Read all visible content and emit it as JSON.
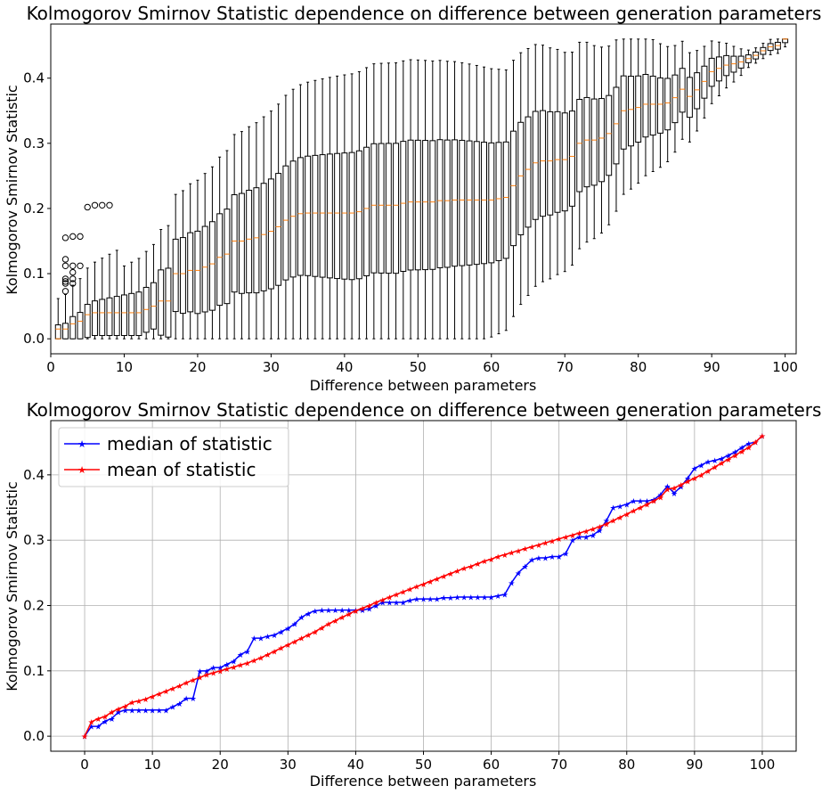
{
  "chart_data": [
    {
      "type": "box",
      "title": "Kolmogorov Smirnov Statistic dependence on difference between generation parameters",
      "xlabel": "Difference between parameters",
      "ylabel": "Kolmogorov Smirnov Statistic",
      "xlim": [
        0,
        101.5
      ],
      "ylim": [
        -0.023,
        0.483
      ],
      "xticks": [
        "0",
        "10",
        "20",
        "30",
        "40",
        "50",
        "60",
        "70",
        "80",
        "90",
        "100"
      ],
      "yticks": [
        "0.0",
        "0.1",
        "0.2",
        "0.3",
        "0.4"
      ],
      "grid": false,
      "box_edge_color": "#000000",
      "median_color": "#ff7f0e",
      "outlier_color": "#000000",
      "summary": "Boxplots of the statistic for each parameter difference 1..100; medians follow the median curve shown below, quartile ranges widen toward the middle and narrow near 100.",
      "outliers": [
        {
          "x": 2,
          "values": [
            0.155,
            0.122,
            0.112,
            0.092,
            0.088,
            0.085,
            0.073
          ]
        },
        {
          "x": 3,
          "values": [
            0.157,
            0.112,
            0.102,
            0.092,
            0.085
          ]
        },
        {
          "x": 4,
          "values": [
            0.157,
            0.112
          ]
        },
        {
          "x": 5,
          "values": [
            0.202
          ]
        },
        {
          "x": 6,
          "values": [
            0.205
          ]
        },
        {
          "x": 7,
          "values": [
            0.205
          ]
        },
        {
          "x": 8,
          "values": [
            0.205
          ]
        }
      ]
    },
    {
      "type": "line",
      "title": "Kolmogorov Smirnov Statistic dependence on difference between generation parameters",
      "xlabel": "Difference between parameters",
      "ylabel": "Kolmogorov Smirnov Statistic",
      "xlim": [
        -5,
        105
      ],
      "ylim": [
        -0.023,
        0.483
      ],
      "xticks": [
        "0",
        "10",
        "20",
        "30",
        "40",
        "50",
        "60",
        "70",
        "80",
        "90",
        "100"
      ],
      "yticks": [
        "0.0",
        "0.1",
        "0.2",
        "0.3",
        "0.4"
      ],
      "grid": true,
      "legend_position": "top-left",
      "series": [
        {
          "name": "median of statistic",
          "color": "#0000ff",
          "marker": "star",
          "points": [
            [
              0,
              0.0
            ],
            [
              1,
              0.015
            ],
            [
              2,
              0.015
            ],
            [
              3,
              0.023
            ],
            [
              4,
              0.027
            ],
            [
              5,
              0.037
            ],
            [
              6,
              0.04
            ],
            [
              7,
              0.04
            ],
            [
              8,
              0.04
            ],
            [
              9,
              0.04
            ],
            [
              10,
              0.04
            ],
            [
              11,
              0.04
            ],
            [
              12,
              0.04
            ],
            [
              13,
              0.045
            ],
            [
              14,
              0.05
            ],
            [
              15,
              0.058
            ],
            [
              16,
              0.058
            ],
            [
              17,
              0.1
            ],
            [
              18,
              0.1
            ],
            [
              19,
              0.105
            ],
            [
              20,
              0.105
            ],
            [
              21,
              0.11
            ],
            [
              22,
              0.115
            ],
            [
              23,
              0.125
            ],
            [
              24,
              0.13
            ],
            [
              25,
              0.15
            ],
            [
              26,
              0.15
            ],
            [
              27,
              0.153
            ],
            [
              28,
              0.155
            ],
            [
              29,
              0.16
            ],
            [
              30,
              0.165
            ],
            [
              31,
              0.172
            ],
            [
              32,
              0.182
            ],
            [
              33,
              0.188
            ],
            [
              34,
              0.192
            ],
            [
              35,
              0.193
            ],
            [
              36,
              0.193
            ],
            [
              37,
              0.193
            ],
            [
              38,
              0.193
            ],
            [
              39,
              0.193
            ],
            [
              40,
              0.193
            ],
            [
              41,
              0.193
            ],
            [
              42,
              0.195
            ],
            [
              43,
              0.2
            ],
            [
              44,
              0.205
            ],
            [
              45,
              0.205
            ],
            [
              46,
              0.205
            ],
            [
              47,
              0.205
            ],
            [
              48,
              0.208
            ],
            [
              49,
              0.21
            ],
            [
              50,
              0.21
            ],
            [
              51,
              0.21
            ],
            [
              52,
              0.21
            ],
            [
              53,
              0.212
            ],
            [
              54,
              0.212
            ],
            [
              55,
              0.213
            ],
            [
              56,
              0.213
            ],
            [
              57,
              0.213
            ],
            [
              58,
              0.213
            ],
            [
              59,
              0.213
            ],
            [
              60,
              0.213
            ],
            [
              61,
              0.215
            ],
            [
              62,
              0.217
            ],
            [
              63,
              0.235
            ],
            [
              64,
              0.25
            ],
            [
              65,
              0.26
            ],
            [
              66,
              0.27
            ],
            [
              67,
              0.273
            ],
            [
              68,
              0.273
            ],
            [
              69,
              0.275
            ],
            [
              70,
              0.275
            ],
            [
              71,
              0.28
            ],
            [
              72,
              0.3
            ],
            [
              73,
              0.305
            ],
            [
              74,
              0.305
            ],
            [
              75,
              0.308
            ],
            [
              76,
              0.315
            ],
            [
              77,
              0.33
            ],
            [
              78,
              0.35
            ],
            [
              79,
              0.352
            ],
            [
              80,
              0.355
            ],
            [
              81,
              0.36
            ],
            [
              82,
              0.36
            ],
            [
              83,
              0.36
            ],
            [
              84,
              0.362
            ],
            [
              85,
              0.37
            ],
            [
              86,
              0.383
            ],
            [
              87,
              0.372
            ],
            [
              88,
              0.382
            ],
            [
              89,
              0.395
            ],
            [
              90,
              0.41
            ],
            [
              91,
              0.415
            ],
            [
              92,
              0.42
            ],
            [
              93,
              0.422
            ],
            [
              94,
              0.425
            ],
            [
              95,
              0.43
            ],
            [
              96,
              0.435
            ],
            [
              97,
              0.442
            ],
            [
              98,
              0.448
            ],
            [
              99,
              0.45
            ],
            [
              100,
              0.46
            ]
          ]
        },
        {
          "name": "mean of statistic",
          "color": "#ff0000",
          "marker": "star",
          "points": [
            [
              0,
              0.0
            ],
            [
              1,
              0.022
            ],
            [
              2,
              0.027
            ],
            [
              3,
              0.03
            ],
            [
              4,
              0.037
            ],
            [
              5,
              0.042
            ],
            [
              6,
              0.046
            ],
            [
              7,
              0.052
            ],
            [
              8,
              0.054
            ],
            [
              9,
              0.057
            ],
            [
              10,
              0.061
            ],
            [
              11,
              0.065
            ],
            [
              12,
              0.069
            ],
            [
              13,
              0.073
            ],
            [
              14,
              0.077
            ],
            [
              15,
              0.082
            ],
            [
              16,
              0.086
            ],
            [
              17,
              0.09
            ],
            [
              18,
              0.094
            ],
            [
              19,
              0.097
            ],
            [
              20,
              0.1
            ],
            [
              21,
              0.103
            ],
            [
              22,
              0.106
            ],
            [
              23,
              0.109
            ],
            [
              24,
              0.112
            ],
            [
              25,
              0.116
            ],
            [
              26,
              0.12
            ],
            [
              27,
              0.125
            ],
            [
              28,
              0.13
            ],
            [
              29,
              0.135
            ],
            [
              30,
              0.14
            ],
            [
              31,
              0.145
            ],
            [
              32,
              0.15
            ],
            [
              33,
              0.155
            ],
            [
              34,
              0.16
            ],
            [
              35,
              0.166
            ],
            [
              36,
              0.172
            ],
            [
              37,
              0.177
            ],
            [
              38,
              0.182
            ],
            [
              39,
              0.187
            ],
            [
              40,
              0.192
            ],
            [
              41,
              0.196
            ],
            [
              42,
              0.2
            ],
            [
              43,
              0.205
            ],
            [
              44,
              0.209
            ],
            [
              45,
              0.213
            ],
            [
              46,
              0.217
            ],
            [
              47,
              0.221
            ],
            [
              48,
              0.225
            ],
            [
              49,
              0.229
            ],
            [
              50,
              0.233
            ],
            [
              51,
              0.237
            ],
            [
              52,
              0.241
            ],
            [
              53,
              0.245
            ],
            [
              54,
              0.249
            ],
            [
              55,
              0.253
            ],
            [
              56,
              0.257
            ],
            [
              57,
              0.26
            ],
            [
              58,
              0.264
            ],
            [
              59,
              0.268
            ],
            [
              60,
              0.271
            ],
            [
              61,
              0.275
            ],
            [
              62,
              0.278
            ],
            [
              63,
              0.281
            ],
            [
              64,
              0.284
            ],
            [
              65,
              0.287
            ],
            [
              66,
              0.29
            ],
            [
              67,
              0.293
            ],
            [
              68,
              0.296
            ],
            [
              69,
              0.299
            ],
            [
              70,
              0.302
            ],
            [
              71,
              0.305
            ],
            [
              72,
              0.308
            ],
            [
              73,
              0.311
            ],
            [
              74,
              0.314
            ],
            [
              75,
              0.317
            ],
            [
              76,
              0.321
            ],
            [
              77,
              0.325
            ],
            [
              78,
              0.33
            ],
            [
              79,
              0.335
            ],
            [
              80,
              0.34
            ],
            [
              81,
              0.345
            ],
            [
              82,
              0.35
            ],
            [
              83,
              0.355
            ],
            [
              84,
              0.36
            ],
            [
              85,
              0.366
            ],
            [
              86,
              0.378
            ],
            [
              87,
              0.38
            ],
            [
              88,
              0.385
            ],
            [
              89,
              0.39
            ],
            [
              90,
              0.395
            ],
            [
              91,
              0.4
            ],
            [
              92,
              0.406
            ],
            [
              93,
              0.412
            ],
            [
              94,
              0.418
            ],
            [
              95,
              0.424
            ],
            [
              96,
              0.43
            ],
            [
              97,
              0.436
            ],
            [
              98,
              0.442
            ],
            [
              99,
              0.45
            ],
            [
              100,
              0.46
            ]
          ]
        }
      ]
    }
  ]
}
